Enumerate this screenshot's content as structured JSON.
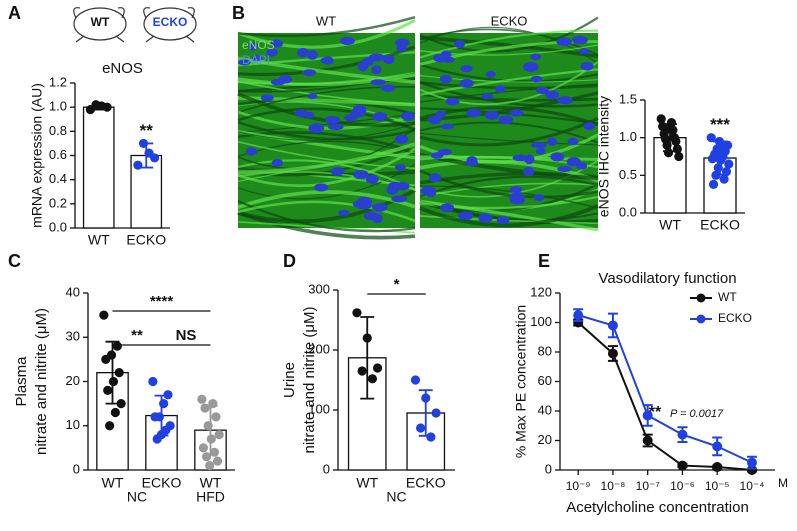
{
  "panel_letters": [
    "A",
    "B",
    "C",
    "D",
    "E"
  ],
  "mouse_labels": [
    "WT",
    "ECKO"
  ],
  "images": {
    "labels": [
      "WT",
      "ECKO"
    ],
    "stain": [
      "eNOS",
      "DAPI"
    ]
  },
  "chart_data": [
    {
      "type": "bar",
      "title": "eNOS",
      "y_label": "mRNA expression (AU)",
      "categories": [
        "WT",
        "ECKO"
      ],
      "values": [
        1.0,
        0.6
      ],
      "errors": [
        0.02,
        0.1
      ],
      "points": [
        [
          0.98,
          1.0,
          1.01,
          1.02
        ],
        [
          0.52,
          0.58,
          0.62,
          0.7
        ]
      ],
      "colors": [
        "#111111",
        "#2140e0"
      ],
      "ylim": [
        0,
        1.2
      ],
      "yticks": [
        {
          "value": 0,
          "label": "0.0"
        },
        {
          "value": 0.2,
          "label": "0.2"
        },
        {
          "value": 0.4,
          "label": "0.4"
        },
        {
          "value": 0.6,
          "label": "0.6"
        },
        {
          "value": 0.8,
          "label": "0.8"
        },
        {
          "value": 1,
          "label": "1.0"
        },
        {
          "value": 1.2,
          "label": "1.2"
        }
      ],
      "annotations": [
        {
          "text": "**",
          "from": 1,
          "to": 1
        }
      ]
    },
    {
      "type": "bar",
      "y_label": "eNOS IHC intensity",
      "categories": [
        "WT",
        "ECKO"
      ],
      "values": [
        1.0,
        0.73
      ],
      "errors": [
        0.18,
        0.22
      ],
      "points": [
        [
          1.25,
          1.2,
          1.15,
          1.1,
          1.05,
          1.0,
          0.98,
          0.95,
          0.9,
          0.85,
          0.8,
          0.75,
          1.12
        ],
        [
          1.0,
          0.95,
          0.9,
          0.85,
          0.82,
          0.78,
          0.75,
          0.72,
          0.7,
          0.65,
          0.6,
          0.55,
          0.5,
          0.45,
          0.38,
          0.88
        ]
      ],
      "colors": [
        "#111111",
        "#2140e0"
      ],
      "ylim": [
        0,
        1.5
      ],
      "yticks": [
        {
          "value": 0,
          "label": "0.0"
        },
        {
          "value": 0.5,
          "label": "0.5"
        },
        {
          "value": 1,
          "label": "1.0"
        },
        {
          "value": 1.5,
          "label": "1.5"
        }
      ],
      "annotations": [
        {
          "text": "***",
          "from": 1,
          "to": 1
        }
      ]
    },
    {
      "type": "bar",
      "y_label": [
        "Plasma",
        "nitrate and nitrite (μM)"
      ],
      "categories": [
        "WT",
        "ECKO",
        "WT"
      ],
      "values": [
        22,
        12.3,
        9
      ],
      "errors": [
        7,
        4.5,
        5.5
      ],
      "points": [
        [
          35,
          28,
          26,
          25,
          22,
          20,
          18,
          15,
          13,
          10
        ],
        [
          20,
          17,
          15,
          12,
          12,
          10,
          9,
          8,
          7
        ],
        [
          16,
          15,
          14,
          12,
          10,
          8,
          7,
          5,
          4,
          3,
          2,
          1
        ]
      ],
      "colors": [
        "#111111",
        "#2140e0",
        "#999999"
      ],
      "groups": [
        {
          "label": "NC",
          "from": 0,
          "to": 1
        },
        {
          "label": "HFD",
          "from": 2,
          "to": 2
        }
      ],
      "ylim": [
        0,
        40
      ],
      "yticks": [
        0,
        10,
        20,
        30,
        40
      ],
      "annotations": [
        {
          "text": "**",
          "from": 0,
          "to": 1
        },
        {
          "text": "NS",
          "from": 1,
          "to": 2
        },
        {
          "text": "****",
          "from": 0,
          "to": 2
        }
      ]
    },
    {
      "type": "bar",
      "y_label": [
        "Urine",
        "nitrate and nitrite (μM)"
      ],
      "categories": [
        "WT",
        "ECKO"
      ],
      "values": [
        187,
        95
      ],
      "errors": [
        68,
        38
      ],
      "points": [
        [
          262,
          220,
          170,
          165,
          152
        ],
        [
          150,
          120,
          95,
          70,
          55
        ]
      ],
      "colors": [
        "#111111",
        "#2140e0"
      ],
      "groups": [
        {
          "label": "NC",
          "from": 0,
          "to": 1
        }
      ],
      "ylim": [
        0,
        300
      ],
      "yticks": [
        0,
        100,
        200,
        300
      ],
      "annotations": [
        {
          "text": "*",
          "from": 0,
          "to": 1
        }
      ]
    },
    {
      "type": "line",
      "title": "Vasodilatory function",
      "y_label": "% Max PE concentration",
      "x_label": "Acetylcholine concentration",
      "x_unit": "M",
      "x": [
        1e-09,
        1e-08,
        1e-07,
        1e-06,
        1e-05,
        0.0001
      ],
      "xlog": true,
      "series": [
        {
          "name": "WT",
          "color": "#111111",
          "values": [
            100,
            79,
            20,
            3,
            2,
            0
          ],
          "errors": [
            2,
            5,
            4,
            1,
            1,
            1
          ]
        },
        {
          "name": "ECKO",
          "color": "#2140e0",
          "values": [
            105,
            98,
            37,
            24,
            16,
            5
          ],
          "errors": [
            4,
            8,
            7,
            5,
            6,
            4
          ]
        }
      ],
      "xlim": [
        3e-10,
        0.00046
      ],
      "xticks": [
        {
          "value": 1e-09,
          "label": "10⁻⁹"
        },
        {
          "value": 1e-08,
          "label": "10⁻⁸"
        },
        {
          "value": 1e-07,
          "label": "10⁻⁷"
        },
        {
          "value": 1e-06,
          "label": "10⁻⁶"
        },
        {
          "value": 1e-05,
          "label": "10⁻⁵"
        },
        {
          "value": 0.0001,
          "label": "10⁻⁴"
        }
      ],
      "ylim": [
        0,
        120
      ],
      "yticks": [
        0,
        20,
        40,
        60,
        80,
        100,
        120
      ],
      "legend": "upper right",
      "annotations": [
        {
          "text": "**"
        },
        {
          "text": "P = 0.0017"
        }
      ]
    }
  ]
}
